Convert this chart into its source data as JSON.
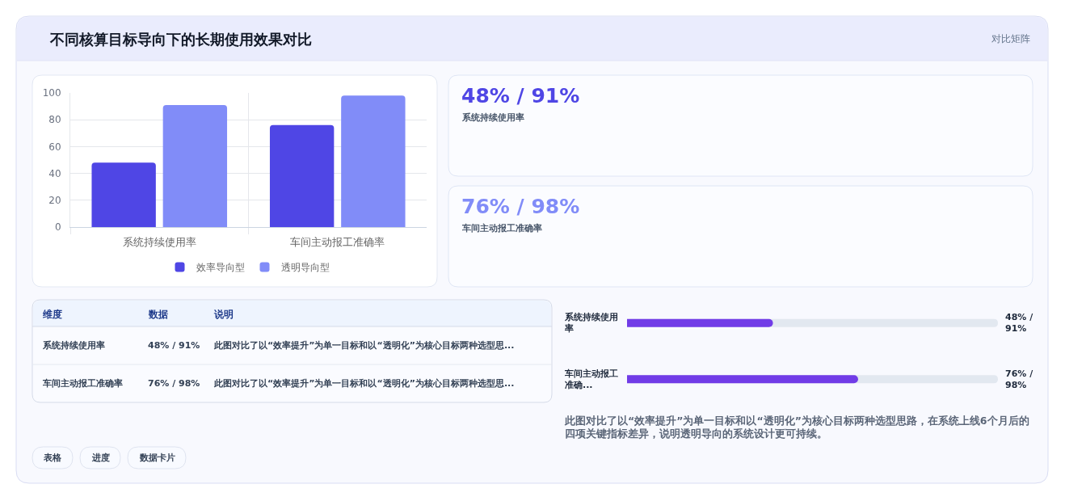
{
  "chart_data": [
    {
      "type": "bar",
      "title": "不同核算目标导向下的长期使用效果对比",
      "annotations": [
        "对比矩阵"
      ],
      "categories": [
        "系统持续使用率",
        "车间主动报工准确率"
      ],
      "series": [
        {
          "name": "效率导向型",
          "color": "#4f46e5",
          "values": [
            48,
            76
          ]
        },
        {
          "name": "透明导向型",
          "color": "#818cf8",
          "values": [
            91,
            98
          ]
        }
      ],
      "ylim": [
        0,
        100
      ],
      "yticks": [
        0,
        20,
        40,
        60,
        80,
        100
      ],
      "grid": true,
      "legend": "bottom"
    },
    {
      "type": "other",
      "title": "48% / 91%",
      "subtitle": "系统持续使用率",
      "color": "#4f46e5"
    },
    {
      "type": "other",
      "title": "76% / 98%",
      "subtitle": "车间主动报工准确率",
      "color": "#818cf8"
    },
    {
      "type": "other",
      "categories": [
        "维度",
        "数据",
        "说明"
      ],
      "y_categories": [
        "系统持续使用率",
        "车间主动报工准确率"
      ],
      "cell_labels": [
        [
          "48% / 91%",
          "此图对比了以“效率提升”为单一目标和以“透明化”为核心目标两种选型思..."
        ],
        [
          "76% / 98%",
          "此图对比了以“效率提升”为单一目标和以“透明化”为核心目标两种选型思..."
        ]
      ]
    },
    {
      "type": "bar",
      "orientation": "horizontal",
      "tick_labels": "y",
      "categories": [
        "系统持续使用率",
        "车间主动报工准确..."
      ],
      "series": [
        {
          "color": "#713ce7",
          "values": [
            48,
            76
          ],
          "value_labels": [
            "48% / 91%",
            "76% / 98%"
          ]
        }
      ],
      "xlim": [
        0,
        122
      ],
      "annotations": [
        "此图对比了以“效率提升”为单一目标和以“透明化”为核心目标两种选型思路，在系统上线6个月后的四项关键指标差异，说明透明导向的系统设计更可持续。"
      ]
    },
    {
      "type": "other",
      "annotations": [
        "表格",
        "进度",
        "数据卡片"
      ]
    }
  ]
}
